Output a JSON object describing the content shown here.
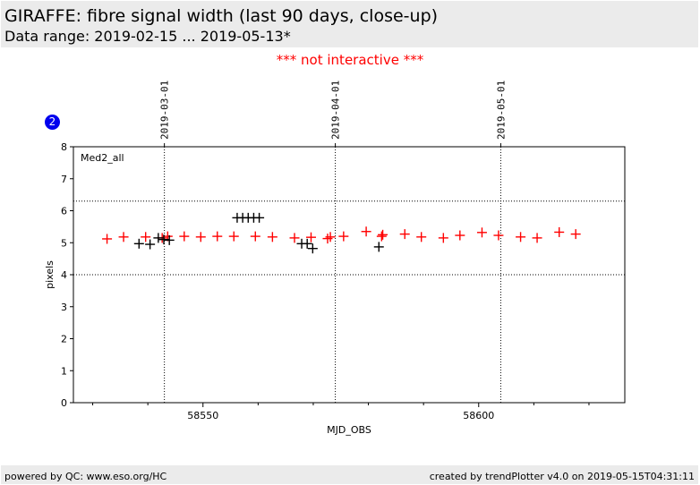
{
  "header": {
    "title": "GIRAFFE: fibre signal width (last 90 days, close-up)",
    "subtitle": "Data range: 2019-02-15 ... 2019-05-13*"
  },
  "notice": "*** not interactive ***",
  "badge": "2",
  "footer": {
    "left": "powered by QC: www.eso.org/HC",
    "right": "created by trendPlotter v4.0 on 2019-05-15T04:31:11"
  },
  "colors": {
    "series_red": "#ff0000",
    "series_black": "#000000",
    "notice": "#ff0000",
    "badge": "#0000ee"
  },
  "chart_data": {
    "type": "scatter",
    "panel_label": "Med2_all",
    "xlabel": "MJD_OBS",
    "ylabel": "pixels",
    "xlim": [
      58526.5,
      58626.5
    ],
    "ylim": [
      0,
      8
    ],
    "xticks_major": [
      58550,
      58600
    ],
    "xticks_minor": [
      58530,
      58540,
      58560,
      58570,
      58580,
      58590,
      58610,
      58620
    ],
    "yticks": [
      0,
      1,
      2,
      3,
      4,
      5,
      6,
      7,
      8
    ],
    "hlines": [
      4.0,
      6.3
    ],
    "date_markers": [
      {
        "label": "2019-03-01",
        "mjd": 58543
      },
      {
        "label": "2019-04-01",
        "mjd": 58574
      },
      {
        "label": "2019-05-01",
        "mjd": 58604
      }
    ],
    "grid": false,
    "series": [
      {
        "color": "#ff0000",
        "x": [
          58532.6,
          58535.6,
          58539.6,
          58542.6,
          58543.6,
          58546.6,
          58549.6,
          58552.6,
          58555.6,
          58559.5,
          58562.6,
          58566.6,
          58569.6,
          58572.6,
          58573.1,
          58575.5,
          58579.6,
          58582.4,
          58582.6,
          58586.6,
          58589.6,
          58593.6,
          58596.6,
          58600.6,
          58603.6,
          58607.6,
          58610.6,
          58614.6,
          58617.6
        ],
        "y": [
          5.12,
          5.18,
          5.18,
          5.15,
          5.2,
          5.2,
          5.18,
          5.2,
          5.2,
          5.2,
          5.18,
          5.15,
          5.17,
          5.13,
          5.18,
          5.2,
          5.35,
          5.2,
          5.25,
          5.27,
          5.18,
          5.15,
          5.23,
          5.32,
          5.23,
          5.18,
          5.15,
          5.33,
          5.27
        ]
      },
      {
        "color": "#000000",
        "x": [
          58538.4,
          58540.4,
          58541.9,
          58542.9,
          58543.9,
          58556.2,
          58557.2,
          58558.2,
          58559.2,
          58560.2,
          58567.9,
          58568.9,
          58569.9,
          58581.9
        ],
        "y": [
          4.97,
          4.95,
          5.15,
          5.1,
          5.08,
          5.78,
          5.78,
          5.78,
          5.78,
          5.78,
          4.97,
          4.97,
          4.82,
          4.87
        ]
      }
    ]
  }
}
